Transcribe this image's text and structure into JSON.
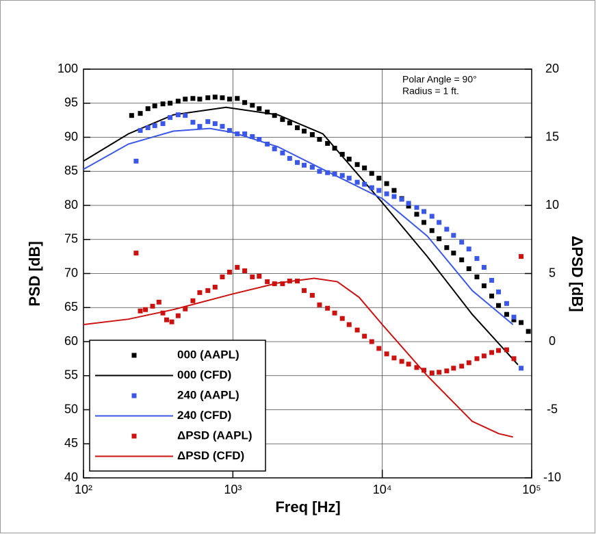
{
  "chart_data": {
    "type": "line",
    "xscale": "log",
    "xlabel": "Freq [Hz]",
    "ylabel": "PSD [dB]",
    "y2label": "ΔPSD [dB]",
    "annotations": [
      "Polar Angle = 90°",
      "Radius = 1 ft."
    ],
    "xlim": [
      100,
      100000
    ],
    "xticks": [
      {
        "value": 100,
        "label": "10²"
      },
      {
        "value": 1000,
        "label": "10³"
      },
      {
        "value": 10000,
        "label": "10⁴"
      },
      {
        "value": 100000,
        "label": "10⁵"
      }
    ],
    "ylim": [
      40,
      100
    ],
    "yticks": [
      40,
      45,
      50,
      55,
      60,
      65,
      70,
      75,
      80,
      85,
      90,
      95,
      100
    ],
    "y2lim": [
      -10,
      20
    ],
    "y2ticks": [
      -10,
      -5,
      0,
      5,
      10,
      15,
      20
    ],
    "grid": true,
    "legend": "lower left",
    "series": [
      {
        "name": "000 (AAPL)",
        "color": "#000000",
        "mode": "markers",
        "x": [
          210,
          240,
          270,
          300,
          340,
          380,
          430,
          480,
          540,
          600,
          680,
          760,
          850,
          950,
          1070,
          1200,
          1350,
          1500,
          1700,
          1900,
          2150,
          2400,
          2700,
          3000,
          3400,
          3800,
          4300,
          4800,
          5400,
          6000,
          6800,
          7600,
          8500,
          9500,
          10700,
          12000,
          13500,
          15000,
          17000,
          19000,
          21500,
          24000,
          27000,
          30000,
          34000,
          38000,
          43000,
          48000,
          54000,
          60000,
          68000,
          76000,
          85000,
          95000
        ],
        "values": [
          93.2,
          93.5,
          94.2,
          94.6,
          94.9,
          95.0,
          95.3,
          95.6,
          95.7,
          95.6,
          95.8,
          95.9,
          95.8,
          95.6,
          95.7,
          95.1,
          94.7,
          94.2,
          93.7,
          93.2,
          92.6,
          92.1,
          91.4,
          90.9,
          90.4,
          89.7,
          89.1,
          88.4,
          87.5,
          86.8,
          86.0,
          85.5,
          84.7,
          84.0,
          83.2,
          82.2,
          81.0,
          79.9,
          78.7,
          77.5,
          76.3,
          75.1,
          73.8,
          73.0,
          72.0,
          70.7,
          69.5,
          68.2,
          66.7,
          65.3,
          64.0,
          63.2,
          62.8,
          61.5
        ]
      },
      {
        "name": "000 (CFD)",
        "color": "#000000",
        "mode": "lines",
        "x": [
          100,
          200,
          400,
          900,
          2000,
          4000,
          10000,
          20000,
          40000,
          81000
        ],
        "values": [
          86.5,
          90.5,
          93.3,
          94.4,
          93.3,
          90.5,
          80.4,
          72.5,
          64.0,
          56.6
        ]
      },
      {
        "name": "240 (AAPL)",
        "color": "#3a57e8",
        "mode": "markers",
        "x": [
          225,
          240,
          270,
          300,
          340,
          380,
          430,
          480,
          540,
          600,
          680,
          760,
          850,
          950,
          1070,
          1200,
          1350,
          1500,
          1700,
          1900,
          2150,
          2400,
          2700,
          3000,
          3400,
          3800,
          4300,
          4800,
          5400,
          6000,
          6800,
          7600,
          8500,
          9500,
          10700,
          12000,
          13500,
          15000,
          17000,
          19000,
          21500,
          24000,
          27000,
          30000,
          34000,
          38000,
          43000,
          48000,
          54000,
          60000,
          68000,
          76000,
          85000
        ],
        "values": [
          86.5,
          91.0,
          91.4,
          91.7,
          92.0,
          92.9,
          93.3,
          93.2,
          92.2,
          91.6,
          92.3,
          92.0,
          91.6,
          91.0,
          90.5,
          90.5,
          90.1,
          89.7,
          89.0,
          88.3,
          87.7,
          86.9,
          86.3,
          85.9,
          85.6,
          85.0,
          84.8,
          84.6,
          84.4,
          84.0,
          83.4,
          83.1,
          82.6,
          82.2,
          81.7,
          81.3,
          80.9,
          80.3,
          79.7,
          79.1,
          78.4,
          77.5,
          76.5,
          75.6,
          74.6,
          73.6,
          72.2,
          70.9,
          69.0,
          67.3,
          65.6,
          63.6,
          56.1
        ]
      },
      {
        "name": "240 (CFD)",
        "color": "#3a57e8",
        "mode": "lines",
        "x": [
          100,
          200,
          400,
          700,
          1000,
          2000,
          4000,
          10000,
          20000,
          40000,
          75000
        ],
        "values": [
          85.3,
          89.0,
          90.9,
          91.3,
          90.7,
          88.6,
          85.3,
          81.0,
          75.5,
          67.5,
          62.5
        ]
      },
      {
        "name": "ΔPSD (AAPL)",
        "color": "#cc1111",
        "mode": "markers",
        "axis": "y2",
        "x": [
          225,
          240,
          260,
          290,
          320,
          340,
          360,
          390,
          430,
          480,
          540,
          600,
          680,
          760,
          850,
          950,
          1070,
          1200,
          1350,
          1500,
          1700,
          1900,
          2150,
          2400,
          2700,
          3000,
          3400,
          3800,
          4300,
          4800,
          5400,
          6000,
          6800,
          7600,
          8500,
          9500,
          10700,
          12000,
          13500,
          15000,
          17000,
          19000,
          21500,
          24000,
          27000,
          30000,
          34000,
          38000,
          43000,
          48000,
          54000,
          60000,
          68000,
          76000,
          85000
        ],
        "values": [
          6.5,
          2.25,
          2.35,
          2.6,
          2.9,
          2.1,
          1.6,
          1.45,
          1.9,
          2.4,
          3.0,
          3.6,
          3.75,
          4.0,
          4.75,
          5.1,
          5.45,
          5.2,
          4.75,
          4.8,
          4.4,
          4.25,
          4.25,
          4.45,
          4.45,
          3.75,
          3.4,
          2.7,
          2.45,
          2.1,
          1.7,
          1.25,
          0.85,
          0.4,
          0,
          -0.5,
          -0.9,
          -1.2,
          -1.45,
          -1.65,
          -1.9,
          -2.1,
          -2.3,
          -2.25,
          -2.15,
          -1.95,
          -1.8,
          -1.55,
          -1.25,
          -1.05,
          -0.8,
          -0.65,
          -0.6,
          -1.25,
          6.25
        ]
      },
      {
        "name": "ΔPSD (CFD)",
        "color": "#cc1111",
        "mode": "lines",
        "axis": "y2",
        "x": [
          100,
          200,
          400,
          1000,
          2000,
          3500,
          5000,
          7000,
          10000,
          20000,
          40000,
          60000,
          75000
        ],
        "values": [
          1.25,
          1.65,
          2.35,
          3.5,
          4.3,
          4.65,
          4.4,
          3.25,
          1.25,
          -2.5,
          -5.85,
          -6.75,
          -7.0
        ]
      }
    ]
  }
}
